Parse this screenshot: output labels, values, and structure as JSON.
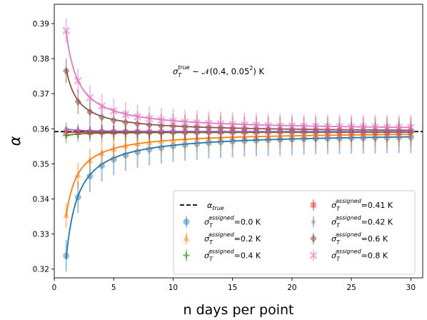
{
  "chart_data": {
    "type": "scatter",
    "xlabel": "n days per point",
    "ylabel": "α",
    "xlim": [
      0,
      31
    ],
    "ylim": [
      0.3175,
      0.3955
    ],
    "xticks": [
      0,
      5,
      10,
      15,
      20,
      25,
      30
    ],
    "yticks": [
      0.32,
      0.33,
      0.34,
      0.35,
      0.36,
      0.37,
      0.38,
      0.39
    ],
    "grid": false,
    "legend_position": "lower-right",
    "annotation": {
      "sigma_base": "σ",
      "sigma_sup": "true",
      "sigma_sub": "T",
      "distribution_text": " ~ 𝒩(0.4, 0.05",
      "distribution_sup": "2",
      "distribution_tail": ") K"
    },
    "reference_line": {
      "label_base": "α",
      "label_sub": "true",
      "value": 0.3592,
      "color": "#000000",
      "style": "dashed"
    },
    "series": [
      {
        "name_value": "=0.0 K",
        "color": "#1f77b4",
        "marker": "circle",
        "points": [
          [
            1,
            0.3238
          ],
          [
            2,
            0.3405
          ],
          [
            3,
            0.3465
          ],
          [
            4,
            0.3495
          ],
          [
            5,
            0.3513
          ],
          [
            6,
            0.3525
          ],
          [
            7,
            0.3534
          ],
          [
            8,
            0.3541
          ],
          [
            9,
            0.3546
          ],
          [
            10,
            0.3551
          ],
          [
            11,
            0.3554
          ],
          [
            12,
            0.3557
          ],
          [
            13,
            0.356
          ],
          [
            14,
            0.3562
          ],
          [
            15,
            0.3564
          ],
          [
            16,
            0.3566
          ],
          [
            17,
            0.3567
          ],
          [
            18,
            0.3568
          ],
          [
            19,
            0.3569
          ],
          [
            20,
            0.357
          ],
          [
            21,
            0.3571
          ],
          [
            22,
            0.3572
          ],
          [
            23,
            0.3573
          ],
          [
            24,
            0.3573
          ],
          [
            25,
            0.3574
          ],
          [
            26,
            0.3574
          ],
          [
            27,
            0.3575
          ],
          [
            28,
            0.3575
          ],
          [
            29,
            0.3576
          ],
          [
            30,
            0.3576
          ]
        ],
        "error": 0.0045,
        "fit_at_1": 0.3228,
        "fit_at_30": 0.3577
      },
      {
        "name_value": "=0.2 K",
        "color": "#ff7f0e",
        "marker": "triangle",
        "points": [
          [
            1,
            0.3353
          ],
          [
            2,
            0.3468
          ],
          [
            3,
            0.3509
          ],
          [
            4,
            0.353
          ],
          [
            5,
            0.3542
          ],
          [
            6,
            0.3551
          ],
          [
            7,
            0.3557
          ],
          [
            8,
            0.3561
          ],
          [
            9,
            0.3565
          ],
          [
            10,
            0.3567
          ],
          [
            11,
            0.357
          ],
          [
            12,
            0.3572
          ],
          [
            13,
            0.3573
          ],
          [
            14,
            0.3575
          ],
          [
            15,
            0.3576
          ],
          [
            16,
            0.3577
          ],
          [
            17,
            0.3578
          ],
          [
            18,
            0.3578
          ],
          [
            19,
            0.3579
          ],
          [
            20,
            0.358
          ],
          [
            21,
            0.358
          ],
          [
            22,
            0.3581
          ],
          [
            23,
            0.3581
          ],
          [
            24,
            0.3582
          ],
          [
            25,
            0.3582
          ],
          [
            26,
            0.3582
          ],
          [
            27,
            0.3583
          ],
          [
            28,
            0.3583
          ],
          [
            29,
            0.3583
          ],
          [
            30,
            0.3583
          ]
        ],
        "error": 0.0035,
        "fit_at_1": 0.335,
        "fit_at_30": 0.3584
      },
      {
        "name_value": "=0.4 K",
        "color": "#2ca02c",
        "marker": "plus",
        "points": [
          [
            1,
            0.3581
          ],
          [
            2,
            0.3585
          ],
          [
            3,
            0.3586
          ],
          [
            4,
            0.3587
          ],
          [
            5,
            0.3587
          ],
          [
            6,
            0.3588
          ],
          [
            7,
            0.3588
          ],
          [
            8,
            0.3588
          ],
          [
            9,
            0.3588
          ],
          [
            10,
            0.3589
          ],
          [
            11,
            0.3589
          ],
          [
            12,
            0.3589
          ],
          [
            13,
            0.3589
          ],
          [
            14,
            0.3589
          ],
          [
            15,
            0.3589
          ],
          [
            16,
            0.3589
          ],
          [
            17,
            0.3589
          ],
          [
            18,
            0.359
          ],
          [
            19,
            0.359
          ],
          [
            20,
            0.359
          ],
          [
            21,
            0.359
          ],
          [
            22,
            0.359
          ],
          [
            23,
            0.359
          ],
          [
            24,
            0.359
          ],
          [
            25,
            0.359
          ],
          [
            26,
            0.359
          ],
          [
            27,
            0.359
          ],
          [
            28,
            0.359
          ],
          [
            29,
            0.359
          ],
          [
            30,
            0.359
          ]
        ],
        "error": 0.0022,
        "fit_at_1": 0.358,
        "fit_at_30": 0.359
      },
      {
        "name_value": "=0.41 K",
        "color": "#d62728",
        "marker": "square",
        "points": [
          [
            1,
            0.359
          ],
          [
            2,
            0.359
          ],
          [
            3,
            0.359
          ],
          [
            4,
            0.3591
          ],
          [
            5,
            0.3591
          ],
          [
            6,
            0.3591
          ],
          [
            7,
            0.3591
          ],
          [
            8,
            0.3591
          ],
          [
            9,
            0.3591
          ],
          [
            10,
            0.3591
          ],
          [
            11,
            0.3591
          ],
          [
            12,
            0.3591
          ],
          [
            13,
            0.3591
          ],
          [
            14,
            0.3591
          ],
          [
            15,
            0.3591
          ],
          [
            16,
            0.3591
          ],
          [
            17,
            0.3591
          ],
          [
            18,
            0.3591
          ],
          [
            19,
            0.3591
          ],
          [
            20,
            0.3591
          ],
          [
            21,
            0.3591
          ],
          [
            22,
            0.3591
          ],
          [
            23,
            0.3591
          ],
          [
            24,
            0.3591
          ],
          [
            25,
            0.3591
          ],
          [
            26,
            0.3591
          ],
          [
            27,
            0.3591
          ],
          [
            28,
            0.3591
          ],
          [
            29,
            0.3591
          ],
          [
            30,
            0.3591
          ]
        ],
        "error": 0.0018,
        "fit_at_1": 0.359,
        "fit_at_30": 0.3591
      },
      {
        "name_value": "=0.42 K",
        "color": "#9467bd",
        "marker": "diamond-small",
        "points": [
          [
            1,
            0.36
          ],
          [
            2,
            0.3597
          ],
          [
            3,
            0.3596
          ],
          [
            4,
            0.3595
          ],
          [
            5,
            0.3594
          ],
          [
            6,
            0.3594
          ],
          [
            7,
            0.3594
          ],
          [
            8,
            0.3593
          ],
          [
            9,
            0.3593
          ],
          [
            10,
            0.3593
          ],
          [
            11,
            0.3593
          ],
          [
            12,
            0.3593
          ],
          [
            13,
            0.3593
          ],
          [
            14,
            0.3593
          ],
          [
            15,
            0.3593
          ],
          [
            16,
            0.3593
          ],
          [
            17,
            0.3593
          ],
          [
            18,
            0.3593
          ],
          [
            19,
            0.3592
          ],
          [
            20,
            0.3592
          ],
          [
            21,
            0.3592
          ],
          [
            22,
            0.3592
          ],
          [
            23,
            0.3592
          ],
          [
            24,
            0.3592
          ],
          [
            25,
            0.3592
          ],
          [
            26,
            0.3592
          ],
          [
            27,
            0.3592
          ],
          [
            28,
            0.3592
          ],
          [
            29,
            0.3592
          ],
          [
            30,
            0.3592
          ]
        ],
        "error": 0.0018,
        "fit_at_1": 0.36,
        "fit_at_30": 0.3592
      },
      {
        "name_value": "=0.6 K",
        "color": "#8c564b",
        "marker": "diamond",
        "points": [
          [
            1,
            0.3765
          ],
          [
            2,
            0.3677
          ],
          [
            3,
            0.3648
          ],
          [
            4,
            0.3633
          ],
          [
            5,
            0.3624
          ],
          [
            6,
            0.3618
          ],
          [
            7,
            0.3614
          ],
          [
            8,
            0.3611
          ],
          [
            9,
            0.3608
          ],
          [
            10,
            0.3607
          ],
          [
            11,
            0.3605
          ],
          [
            12,
            0.3604
          ],
          [
            13,
            0.3603
          ],
          [
            14,
            0.3602
          ],
          [
            15,
            0.3601
          ],
          [
            16,
            0.36
          ],
          [
            17,
            0.36
          ],
          [
            18,
            0.3599
          ],
          [
            19,
            0.3599
          ],
          [
            20,
            0.3598
          ],
          [
            21,
            0.3598
          ],
          [
            22,
            0.3598
          ],
          [
            23,
            0.3597
          ],
          [
            24,
            0.3597
          ],
          [
            25,
            0.3597
          ],
          [
            26,
            0.3597
          ],
          [
            27,
            0.3596
          ],
          [
            28,
            0.3596
          ],
          [
            29,
            0.3596
          ],
          [
            30,
            0.3596
          ]
        ],
        "error": 0.0035,
        "fit_at_1": 0.3772,
        "fit_at_30": 0.3596
      },
      {
        "name_value": "=0.8 K",
        "color": "#e377c2",
        "marker": "x",
        "points": [
          [
            1,
            0.388
          ],
          [
            2,
            0.3737
          ],
          [
            3,
            0.3689
          ],
          [
            4,
            0.3665
          ],
          [
            5,
            0.3651
          ],
          [
            6,
            0.3641
          ],
          [
            7,
            0.3634
          ],
          [
            8,
            0.3629
          ],
          [
            9,
            0.3625
          ],
          [
            10,
            0.3622
          ],
          [
            11,
            0.3619
          ],
          [
            12,
            0.3617
          ],
          [
            13,
            0.3615
          ],
          [
            14,
            0.3614
          ],
          [
            15,
            0.3612
          ],
          [
            16,
            0.3611
          ],
          [
            17,
            0.361
          ],
          [
            18,
            0.3609
          ],
          [
            19,
            0.3608
          ],
          [
            20,
            0.3608
          ],
          [
            21,
            0.3607
          ],
          [
            22,
            0.3607
          ],
          [
            23,
            0.3606
          ],
          [
            24,
            0.3606
          ],
          [
            25,
            0.3605
          ],
          [
            26,
            0.3605
          ],
          [
            27,
            0.3605
          ],
          [
            28,
            0.3604
          ],
          [
            29,
            0.3604
          ],
          [
            30,
            0.3604
          ]
        ],
        "error": 0.0035,
        "fit_at_1": 0.388,
        "fit_at_30": 0.3604
      }
    ],
    "legend": {
      "sigma_base": "σ",
      "sigma_sup": "assigned",
      "sigma_sub": "T"
    }
  }
}
